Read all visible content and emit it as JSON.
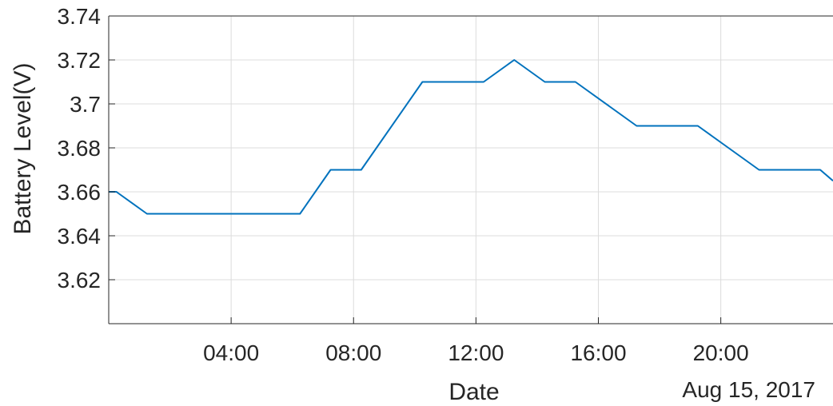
{
  "chart_data": {
    "type": "line",
    "title": "",
    "xlabel": "Date",
    "ylabel": "Battery Level(V)",
    "date_label": "Aug 15, 2017",
    "xlim": [
      "00:00",
      "23:40"
    ],
    "ylim": [
      3.6,
      3.74
    ],
    "grid": true,
    "x_ticks": [
      {
        "value": "04:00",
        "label": "04:00"
      },
      {
        "value": "08:00",
        "label": "08:00"
      },
      {
        "value": "12:00",
        "label": "12:00"
      },
      {
        "value": "16:00",
        "label": "16:00"
      },
      {
        "value": "20:00",
        "label": "20:00"
      }
    ],
    "y_ticks": [
      {
        "value": 3.62,
        "label": "3.62"
      },
      {
        "value": 3.64,
        "label": "3.64"
      },
      {
        "value": 3.66,
        "label": "3.66"
      },
      {
        "value": 3.68,
        "label": "3.68"
      },
      {
        "value": 3.7,
        "label": "3.7"
      },
      {
        "value": 3.72,
        "label": "3.72"
      },
      {
        "value": 3.74,
        "label": "3.74"
      }
    ],
    "series": [
      {
        "color": "#0072bd",
        "x": [
          "00:00",
          "00:15",
          "01:15",
          "06:15",
          "07:15",
          "08:15",
          "10:15",
          "12:15",
          "13:15",
          "14:15",
          "15:15",
          "17:15",
          "19:15",
          "21:15",
          "23:15",
          "23:40"
        ],
        "y": [
          3.66,
          3.66,
          3.65,
          3.65,
          3.67,
          3.67,
          3.71,
          3.71,
          3.72,
          3.71,
          3.71,
          3.69,
          3.69,
          3.67,
          3.67,
          3.665
        ]
      }
    ]
  }
}
